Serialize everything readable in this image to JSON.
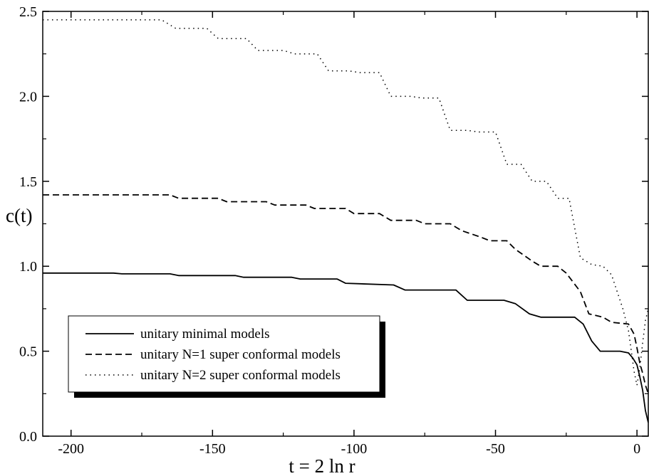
{
  "chart_data": {
    "type": "line",
    "title": "",
    "xlabel": "t = 2 ln r",
    "ylabel": "c(t)",
    "xlim": [
      -210,
      4
    ],
    "ylim": [
      0.0,
      2.5
    ],
    "xticks": [
      -200,
      -150,
      -100,
      -50,
      0
    ],
    "xtick_labels": [
      "-200",
      "-150",
      "-100",
      "-50",
      "0"
    ],
    "yticks": [
      0.0,
      0.5,
      1.0,
      1.5,
      2.0,
      2.5
    ],
    "ytick_labels": [
      "0.0",
      "0.5",
      "1.0",
      "1.5",
      "2.0",
      "2.5"
    ],
    "grid": false,
    "legend_position": "lower-left",
    "series": [
      {
        "name": "unitary minimal models",
        "style": "solid",
        "x": [
          -210,
          -185,
          -182,
          -165,
          -162,
          -142,
          -139,
          -122,
          -119,
          -106,
          -103,
          -86,
          -82,
          -64,
          -60,
          -47,
          -43,
          -38,
          -34,
          -22,
          -19,
          -16,
          -13,
          -6,
          -3,
          -1.5,
          0,
          1,
          2,
          3,
          4
        ],
        "y": [
          0.96,
          0.96,
          0.955,
          0.955,
          0.945,
          0.945,
          0.935,
          0.935,
          0.925,
          0.925,
          0.9,
          0.89,
          0.86,
          0.86,
          0.8,
          0.8,
          0.78,
          0.72,
          0.7,
          0.7,
          0.66,
          0.56,
          0.5,
          0.5,
          0.49,
          0.46,
          0.42,
          0.35,
          0.27,
          0.15,
          0.08
        ]
      },
      {
        "name": "unitary N=1 super conformal models",
        "style": "dashed",
        "x": [
          -210,
          -165,
          -162,
          -148,
          -145,
          -131,
          -128,
          -117,
          -114,
          -103,
          -100,
          -91,
          -87,
          -78,
          -75,
          -66,
          -62,
          -55,
          -52,
          -46,
          -43,
          -37,
          -34,
          -28,
          -25,
          -20,
          -17,
          -12,
          -9,
          -3,
          -1,
          0,
          1,
          2,
          3,
          4
        ],
        "y": [
          1.42,
          1.42,
          1.4,
          1.4,
          1.38,
          1.38,
          1.36,
          1.36,
          1.34,
          1.34,
          1.31,
          1.31,
          1.27,
          1.27,
          1.25,
          1.25,
          1.21,
          1.17,
          1.15,
          1.15,
          1.1,
          1.03,
          1.0,
          1.0,
          0.96,
          0.85,
          0.72,
          0.7,
          0.67,
          0.66,
          0.6,
          0.52,
          0.43,
          0.37,
          0.3,
          0.25
        ]
      },
      {
        "name": "unitary N=2 super conformal models",
        "style": "dotted",
        "x": [
          -210,
          -168,
          -163,
          -152,
          -148,
          -138,
          -134,
          -125,
          -121,
          -113,
          -109,
          -102,
          -98,
          -91,
          -87,
          -80,
          -76,
          -70,
          -66,
          -60,
          -56,
          -50,
          -46,
          -41,
          -37,
          -32,
          -28,
          -24,
          -20,
          -16,
          -12,
          -9,
          -5,
          -3,
          -2,
          -1,
          0,
          1,
          2,
          3,
          4
        ],
        "y": [
          2.45,
          2.45,
          2.4,
          2.4,
          2.34,
          2.34,
          2.27,
          2.27,
          2.25,
          2.25,
          2.15,
          2.15,
          2.14,
          2.14,
          2.0,
          2.0,
          1.99,
          1.99,
          1.8,
          1.8,
          1.79,
          1.79,
          1.6,
          1.6,
          1.5,
          1.5,
          1.4,
          1.4,
          1.05,
          1.01,
          1.0,
          0.95,
          0.75,
          0.62,
          0.5,
          0.38,
          0.3,
          0.4,
          0.55,
          0.68,
          0.75
        ]
      }
    ]
  }
}
